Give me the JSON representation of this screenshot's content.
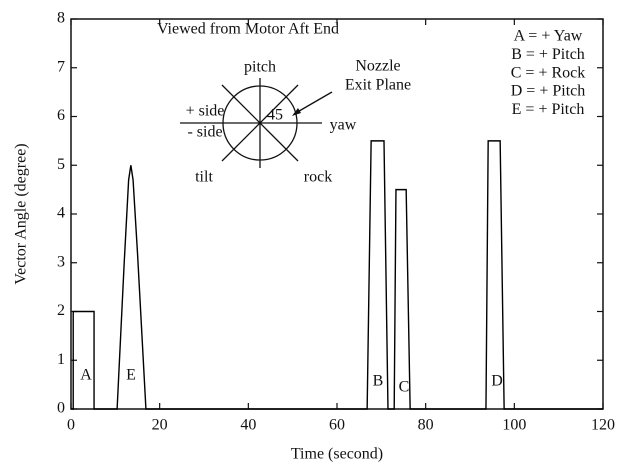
{
  "chart_data": {
    "type": "line",
    "title": "Viewed from Motor Aft End",
    "xlabel": "Time (second)",
    "ylabel": "Vector Angle (degree)",
    "x": [
      0,
      0.5,
      0.5,
      5.2,
      5.2,
      10.4,
      12,
      13,
      13.5,
      14,
      15,
      16.9,
      66.8,
      67.7,
      70.6,
      71.5,
      72.9,
      73.3,
      75.6,
      76.5,
      93.6,
      94.1,
      96.8,
      97.7,
      120
    ],
    "series": [
      {
        "color": "#000000",
        "values": [
          0,
          0,
          2,
          2,
          0,
          0,
          3,
          4.7,
          5,
          4.7,
          3.2,
          0,
          0,
          5.5,
          5.5,
          0,
          0,
          4.5,
          4.5,
          0,
          0,
          5.5,
          5.5,
          0,
          0
        ]
      }
    ],
    "xlim": [
      0,
      120
    ],
    "ylim": [
      0,
      8
    ],
    "xticks": [
      0,
      20,
      40,
      60,
      80,
      100,
      120
    ],
    "yticks": [
      0,
      1,
      2,
      3,
      4,
      5,
      6,
      7,
      8
    ],
    "pulse_labels": [
      "A",
      "E",
      "B",
      "C",
      "D"
    ],
    "key": [
      "A = + Yaw",
      "B = + Pitch",
      "C = + Rock",
      "D = + Pitch",
      "E = + Pitch"
    ],
    "diagram": {
      "pitch": "pitch",
      "yaw": "yaw",
      "rock": "rock",
      "tilt": "tilt",
      "plus_side": "+ side",
      "minus_side": "- side",
      "angle": "45",
      "nozzle": "Nozzle",
      "exit_plane": "Exit Plane"
    }
  }
}
